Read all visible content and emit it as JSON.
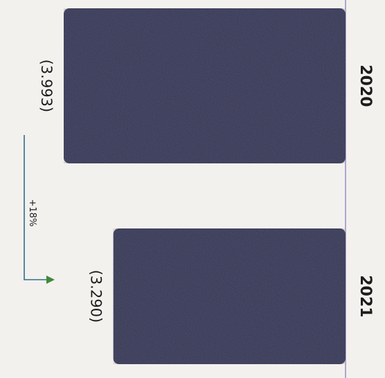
{
  "chart_data": {
    "type": "bar",
    "categories": [
      "2020",
      "2021"
    ],
    "series": [
      {
        "values": [
          3.993,
          3.29
        ]
      }
    ],
    "data_labels": [
      "(3.993)",
      "(3.290)"
    ],
    "annotations": [
      {
        "text": "+18%",
        "from": "2020",
        "to": "2021"
      }
    ],
    "value_range": [
      0,
      3.993
    ],
    "orientation": "horizontal bars, whole image rotated 90° clockwise",
    "grid": false,
    "legend": "none",
    "colors": {
      "background": "#f3f1ee",
      "baseline": "#9a8cc4",
      "arrow": "#2f6f8a",
      "arrow_head": "#3f8a3a",
      "text": "#1c1c1c"
    }
  }
}
